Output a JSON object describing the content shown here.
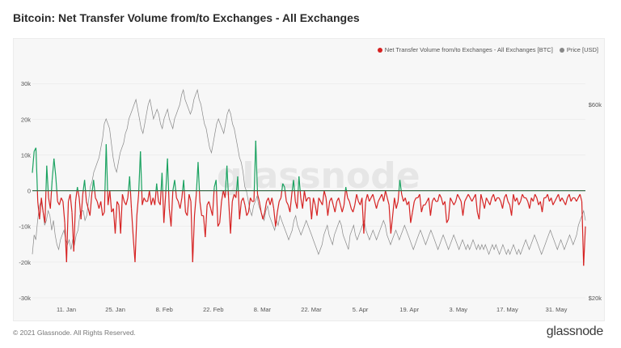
{
  "chart_data": {
    "type": "line",
    "title": "Bitcoin: Net Transfer Volume from/to Exchanges - All Exchanges",
    "series": [
      {
        "name": "Net Transfer Volume from/to Exchanges - All Exchanges [BTC]",
        "axis": "left",
        "positive_color": "#1aa260",
        "negative_color": "#d62222",
        "values": [
          5000,
          11000,
          12000,
          -3000,
          -8000,
          -2000,
          -6000,
          -9000,
          7000,
          -2000,
          -5000,
          3000,
          9000,
          4000,
          -3000,
          -4000,
          -2000,
          -3000,
          -9000,
          -20000,
          -3000,
          -1000,
          -6000,
          -17000,
          -3000,
          1000,
          -2000,
          -8000,
          -1000,
          3000,
          -3000,
          -5000,
          -7000,
          -1000,
          3000,
          -2000,
          -3000,
          -5000,
          -3000,
          -7000,
          -6000,
          13000,
          -4000,
          0,
          -6000,
          -5000,
          -12000,
          -3000,
          -4000,
          -12000,
          -1000,
          -3000,
          -4000,
          -2000,
          4000,
          -5000,
          -13000,
          -20000,
          -7000,
          -1000,
          11000,
          -4000,
          -2000,
          -3000,
          -3000,
          0,
          -4000,
          -2000,
          -4000,
          2000,
          -3000,
          -4000,
          5000,
          -9000,
          -1000,
          9000,
          -5000,
          -10000,
          0,
          3000,
          -2000,
          -3000,
          -5000,
          -2000,
          3000,
          -6000,
          -7000,
          -1000,
          -3000,
          -20000,
          -7000,
          -1000,
          8000,
          -3000,
          -7000,
          -7000,
          -13000,
          -4000,
          -3000,
          -5000,
          -7000,
          1000,
          3000,
          -10000,
          -9000,
          -3000,
          0,
          -2000,
          7000,
          -3000,
          -12000,
          -3000,
          -1000,
          -2000,
          4000,
          -8000,
          -3000,
          -2000,
          -4000,
          -7000,
          -6000,
          -2000,
          -3000,
          -3000,
          14000,
          -1000,
          -3000,
          -6000,
          -8000,
          -6000,
          -3000,
          -2000,
          -4000,
          -2000,
          -5000,
          -10000,
          -6000,
          -3000,
          -2000,
          2000,
          1000,
          -3000,
          -4000,
          -6000,
          -1000,
          3000,
          -3000,
          -5000,
          4000,
          -2000,
          -5000,
          0,
          -3000,
          -2000,
          -2000,
          -8000,
          -2000,
          -4000,
          -7000,
          -2000,
          -3000,
          -4000,
          0,
          -2000,
          -7000,
          -3000,
          -2000,
          -4000,
          -6000,
          -3000,
          -2000,
          -4000,
          -6000,
          -4000,
          1000,
          -2000,
          -3000,
          -5000,
          -6000,
          -4000,
          -1000,
          -3000,
          -4000,
          -2000,
          -12000,
          -3000,
          -1000,
          -3000,
          -2000,
          -1000,
          -3000,
          -5000,
          -3000,
          -2000,
          -1000,
          -3000,
          0,
          -2000,
          -4000,
          -12000,
          -7000,
          -2000,
          -5000,
          -3000,
          3000,
          -1000,
          -3000,
          -2000,
          -4000,
          -3000,
          -9000,
          -6000,
          -3000,
          -2000,
          -2000,
          -1000,
          -6000,
          -4000,
          -4000,
          -3000,
          -2000,
          -7000,
          -3000,
          -2000,
          -3000,
          -3000,
          -1000,
          -2000,
          -4000,
          -3000,
          -9000,
          -8000,
          -2000,
          -3000,
          -4000,
          -3000,
          -1000,
          -2000,
          -3000,
          -7000,
          -3000,
          -2000,
          -1000,
          -2000,
          -3000,
          -2000,
          -1000,
          -6000,
          -8000,
          -1000,
          -3000,
          -5000,
          -2000,
          -3000,
          -4000,
          -2000,
          -1000,
          -3000,
          -2000,
          -2000,
          -3000,
          -5000,
          -2000,
          -1000,
          -3000,
          -4000,
          -7000,
          -1000,
          -3000,
          -2000,
          -4000,
          -3000,
          -1000,
          -2000,
          -2000,
          -3000,
          -5000,
          -2000,
          -3000,
          -1000,
          -2000,
          -4000,
          -3000,
          -6000,
          -2000,
          -2000,
          -1000,
          -3000,
          -2000,
          -4000,
          -3000,
          -2000,
          -1000,
          -3000,
          -2000,
          -3000,
          -4000,
          -2000,
          -1000,
          -3000,
          -2000,
          -2000,
          -3000,
          -2000,
          -1000,
          -3000,
          -21000,
          -10000
        ]
      },
      {
        "name": "Price [USD]",
        "axis": "right",
        "color": "#888888",
        "values": [
          29000,
          33000,
          32000,
          36000,
          39000,
          40000,
          38000,
          35000,
          36000,
          38000,
          37000,
          34000,
          36000,
          33000,
          31000,
          30000,
          32000,
          33000,
          34000,
          32000,
          31000,
          32000,
          30000,
          32000,
          31000,
          33000,
          34000,
          37000,
          38000,
          38000,
          36000,
          37000,
          40000,
          43000,
          44000,
          46000,
          47000,
          48000,
          49000,
          51000,
          53000,
          56000,
          57000,
          56000,
          55000,
          52000,
          49000,
          47000,
          46000,
          48000,
          50000,
          51000,
          52000,
          54000,
          55000,
          57000,
          58000,
          59000,
          60000,
          61000,
          59000,
          57000,
          55000,
          54000,
          56000,
          58000,
          60000,
          61000,
          59000,
          57000,
          58000,
          59000,
          58000,
          56000,
          55000,
          57000,
          58000,
          59000,
          57000,
          56000,
          55000,
          57000,
          58000,
          59000,
          60000,
          62000,
          63000,
          61000,
          60000,
          59000,
          58000,
          59000,
          61000,
          62000,
          63000,
          61000,
          60000,
          58000,
          56000,
          55000,
          53000,
          51000,
          50000,
          52000,
          54000,
          56000,
          57000,
          56000,
          55000,
          54000,
          56000,
          58000,
          59000,
          58000,
          56000,
          55000,
          53000,
          51000,
          49000,
          48000,
          46000,
          43000,
          42000,
          40000,
          38000,
          37000,
          39000,
          40000,
          41000,
          39000,
          38000,
          37000,
          36000,
          38000,
          39000,
          37000,
          36000,
          35000,
          34000,
          36000,
          35000,
          37000,
          36000,
          35000,
          34000,
          33000,
          32000,
          33000,
          34000,
          36000,
          37000,
          35000,
          34000,
          33000,
          34000,
          35000,
          36000,
          35000,
          34000,
          33000,
          32000,
          31000,
          30000,
          29000,
          30000,
          31000,
          33000,
          34000,
          35000,
          33000,
          32000,
          31000,
          33000,
          34000,
          35000,
          36000,
          35000,
          33000,
          32000,
          31000,
          30000,
          33000,
          34000,
          35000,
          33000,
          32000,
          33000,
          34000,
          35000,
          36000,
          34000,
          33000,
          32000,
          33000,
          34000,
          33000,
          32000,
          33000,
          34000,
          35000,
          36000,
          35000,
          33000,
          32000,
          31000,
          32000,
          33000,
          34000,
          33000,
          32000,
          33000,
          34000,
          35000,
          34000,
          33000,
          32000,
          31000,
          30000,
          31000,
          32000,
          33000,
          34000,
          33000,
          32000,
          31000,
          32000,
          33000,
          34000,
          33000,
          32000,
          31000,
          30000,
          31000,
          32000,
          33000,
          32000,
          31000,
          30000,
          31000,
          32000,
          33000,
          32000,
          31000,
          30000,
          31000,
          32000,
          31000,
          30000,
          31000,
          30000,
          31000,
          32000,
          31000,
          30000,
          31000,
          30000,
          31000,
          30000,
          31000,
          30000,
          29000,
          30000,
          31000,
          30000,
          31000,
          30000,
          29000,
          30000,
          31000,
          30000,
          29000,
          30000,
          29000,
          30000,
          31000,
          30000,
          29000,
          30000,
          29000,
          30000,
          31000,
          32000,
          31000,
          30000,
          31000,
          32000,
          33000,
          32000,
          31000,
          30000,
          29000,
          30000,
          31000,
          32000,
          33000,
          34000,
          33000,
          32000,
          31000,
          30000,
          31000,
          32000,
          31000,
          30000,
          31000,
          32000,
          33000,
          32000,
          31000,
          32000,
          33000,
          35000,
          36000,
          37000,
          38000,
          36000
        ]
      }
    ],
    "y_left": {
      "ticks": [
        "30k",
        "20k",
        "10k",
        "0",
        "-10k",
        "-20k",
        "-30k"
      ],
      "ylim": [
        -30000,
        33000
      ]
    },
    "y_right": {
      "ticks": [
        "$60k",
        "$20k"
      ]
    },
    "x_ticks": [
      "11. Jan",
      "25. Jan",
      "8. Feb",
      "22. Feb",
      "8. Mar",
      "22. Mar",
      "5. Apr",
      "19. Apr",
      "3. May",
      "17. May",
      "31. May"
    ],
    "grid": true,
    "legend": "top-right"
  },
  "legend": {
    "net_label": "Net Transfer Volume from/to Exchanges - All Exchanges [BTC]",
    "price_label": "Price [USD]"
  },
  "colors": {
    "positive": "#1aa260",
    "negative": "#d62222",
    "price": "#888888",
    "zero": "#3a6b4a"
  },
  "watermark": "glassnode",
  "footer": {
    "copyright": "© 2021 Glassnode. All Rights Reserved.",
    "brand": "glassnode"
  }
}
